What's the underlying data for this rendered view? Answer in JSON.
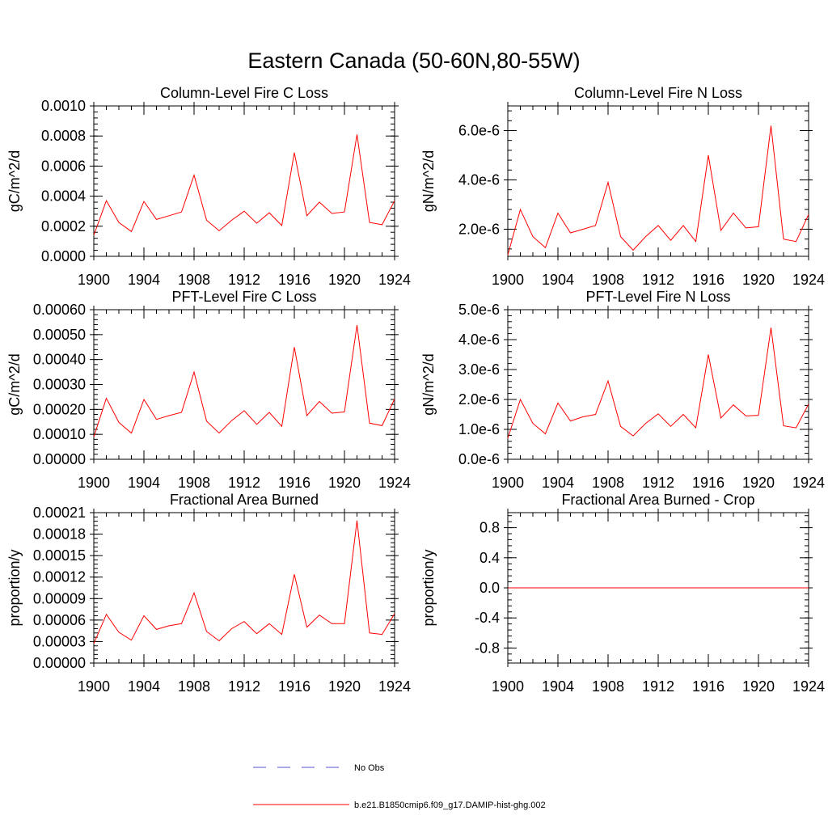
{
  "figure": {
    "title": "Eastern Canada (50-60N,80-55W)"
  },
  "legend": {
    "entries": [
      {
        "label": "No Obs",
        "color": "#5555cc",
        "style": "dashed"
      },
      {
        "label": "b.e21.B1850cmip6.f09_g17.DAMIP-hist-ghg.002",
        "color": "#ff0000",
        "style": "solid"
      }
    ]
  },
  "chart_data": [
    {
      "type": "line",
      "title": "Column-Level Fire C Loss",
      "ylabel": "gC/m^2/d",
      "xlabel": "",
      "xlim": [
        1900,
        1924
      ],
      "ylim": [
        0,
        0.001
      ],
      "xticks": [
        1900,
        1904,
        1908,
        1912,
        1916,
        1920,
        1924
      ],
      "xtick_labels": [
        "1900",
        "1904",
        "1908",
        "1912",
        "1916",
        "1920",
        "1924"
      ],
      "yticks": [
        0,
        0.0002,
        0.0004,
        0.0006,
        0.0008,
        0.001
      ],
      "ytick_labels": [
        "0.0000",
        "0.0002",
        "0.0004",
        "0.0006",
        "0.0008",
        "0.0010"
      ],
      "series": [
        {
          "name": "b.e21.B1850cmip6.f09_g17.DAMIP-hist-ghg.002",
          "color": "#ff0000",
          "x": [
            1900,
            1901,
            1902,
            1903,
            1904,
            1905,
            1906,
            1907,
            1908,
            1909,
            1910,
            1911,
            1912,
            1913,
            1914,
            1915,
            1916,
            1917,
            1918,
            1919,
            1920,
            1921,
            1922,
            1923,
            1924
          ],
          "values": [
            0.00014,
            0.00037,
            0.000225,
            0.000165,
            0.000365,
            0.000245,
            0.00027,
            0.000295,
            0.00054,
            0.00024,
            0.00017,
            0.00024,
            0.0003,
            0.00022,
            0.00029,
            0.000205,
            0.00069,
            0.00027,
            0.00036,
            0.000285,
            0.000295,
            0.00081,
            0.000225,
            0.00021,
            0.00037
          ]
        }
      ]
    },
    {
      "type": "line",
      "title": "Column-Level Fire N Loss",
      "ylabel": "gN/m^2/d",
      "xlabel": "",
      "xlim": [
        1900,
        1924
      ],
      "ylim": [
        9e-07,
        7e-06
      ],
      "xticks": [
        1900,
        1904,
        1908,
        1912,
        1916,
        1920,
        1924
      ],
      "xtick_labels": [
        "1900",
        "1904",
        "1908",
        "1912",
        "1916",
        "1920",
        "1924"
      ],
      "yticks": [
        2e-06,
        4e-06,
        6e-06
      ],
      "ytick_labels": [
        "2.0e-6",
        "4.0e-6",
        "6.0e-6"
      ],
      "series": [
        {
          "name": "b.e21.B1850cmip6.f09_g17.DAMIP-hist-ghg.002",
          "color": "#ff0000",
          "x": [
            1900,
            1901,
            1902,
            1903,
            1904,
            1905,
            1906,
            1907,
            1908,
            1909,
            1910,
            1911,
            1912,
            1913,
            1914,
            1915,
            1916,
            1917,
            1918,
            1919,
            1920,
            1921,
            1922,
            1923,
            1924
          ],
          "values": [
            9.5e-07,
            2.8e-06,
            1.7e-06,
            1.25e-06,
            2.65e-06,
            1.85e-06,
            2e-06,
            2.15e-06,
            3.9e-06,
            1.7e-06,
            1.15e-06,
            1.7e-06,
            2.15e-06,
            1.55e-06,
            2.15e-06,
            1.5e-06,
            5e-06,
            1.95e-06,
            2.65e-06,
            2.05e-06,
            2.1e-06,
            6.2e-06,
            1.6e-06,
            1.5e-06,
            2.6e-06
          ]
        }
      ]
    },
    {
      "type": "line",
      "title": "PFT-Level Fire C Loss",
      "ylabel": "gC/m^2/d",
      "xlabel": "",
      "xlim": [
        1900,
        1924
      ],
      "ylim": [
        0,
        0.0006
      ],
      "xticks": [
        1900,
        1904,
        1908,
        1912,
        1916,
        1920,
        1924
      ],
      "xtick_labels": [
        "1900",
        "1904",
        "1908",
        "1912",
        "1916",
        "1920",
        "1924"
      ],
      "yticks": [
        0,
        0.0001,
        0.0002,
        0.0003,
        0.0004,
        0.0005,
        0.0006
      ],
      "ytick_labels": [
        "0.00000",
        "0.00010",
        "0.00020",
        "0.00030",
        "0.00040",
        "0.00050",
        "0.00060"
      ],
      "series": [
        {
          "name": "b.e21.B1850cmip6.f09_g17.DAMIP-hist-ghg.002",
          "color": "#ff0000",
          "x": [
            1900,
            1901,
            1902,
            1903,
            1904,
            1905,
            1906,
            1907,
            1908,
            1909,
            1910,
            1911,
            1912,
            1913,
            1914,
            1915,
            1916,
            1917,
            1918,
            1919,
            1920,
            1921,
            1922,
            1923,
            1924
          ],
          "values": [
            9e-05,
            0.000245,
            0.000148,
            0.000105,
            0.00024,
            0.00016,
            0.000175,
            0.000188,
            0.00035,
            0.000153,
            0.000105,
            0.000155,
            0.000195,
            0.00014,
            0.000188,
            0.000132,
            0.00045,
            0.000175,
            0.000232,
            0.000185,
            0.00019,
            0.000538,
            0.000145,
            0.000135,
            0.000242
          ]
        }
      ]
    },
    {
      "type": "line",
      "title": "PFT-Level Fire N Loss",
      "ylabel": "gN/m^2/d",
      "xlabel": "",
      "xlim": [
        1900,
        1924
      ],
      "ylim": [
        0,
        5e-06
      ],
      "xticks": [
        1900,
        1904,
        1908,
        1912,
        1916,
        1920,
        1924
      ],
      "xtick_labels": [
        "1900",
        "1904",
        "1908",
        "1912",
        "1916",
        "1920",
        "1924"
      ],
      "yticks": [
        0,
        1e-06,
        2e-06,
        3e-06,
        4e-06,
        5e-06
      ],
      "ytick_labels": [
        "0.0e-6",
        "1.0e-6",
        "2.0e-6",
        "3.0e-6",
        "4.0e-6",
        "5.0e-6"
      ],
      "series": [
        {
          "name": "b.e21.B1850cmip6.f09_g17.DAMIP-hist-ghg.002",
          "color": "#ff0000",
          "x": [
            1900,
            1901,
            1902,
            1903,
            1904,
            1905,
            1906,
            1907,
            1908,
            1909,
            1910,
            1911,
            1912,
            1913,
            1914,
            1915,
            1916,
            1917,
            1918,
            1919,
            1920,
            1921,
            1922,
            1923,
            1924
          ],
          "values": [
            7e-07,
            2e-06,
            1.2e-06,
            8.5e-07,
            1.88e-06,
            1.28e-06,
            1.42e-06,
            1.5e-06,
            2.62e-06,
            1.1e-06,
            7.8e-07,
            1.2e-06,
            1.52e-06,
            1.1e-06,
            1.5e-06,
            1.05e-06,
            3.5e-06,
            1.38e-06,
            1.82e-06,
            1.45e-06,
            1.47e-06,
            4.4e-06,
            1.12e-06,
            1.05e-06,
            1.85e-06
          ]
        }
      ]
    },
    {
      "type": "line",
      "title": "Fractional Area Burned",
      "ylabel": "proportion/y",
      "xlabel": "",
      "xlim": [
        1900,
        1924
      ],
      "ylim": [
        0,
        0.00021
      ],
      "xticks": [
        1900,
        1904,
        1908,
        1912,
        1916,
        1920,
        1924
      ],
      "xtick_labels": [
        "1900",
        "1904",
        "1908",
        "1912",
        "1916",
        "1920",
        "1924"
      ],
      "yticks": [
        0,
        3e-05,
        6e-05,
        9e-05,
        0.00012,
        0.00015,
        0.00018,
        0.00021
      ],
      "ytick_labels": [
        "0.00000",
        "0.00003",
        "0.00006",
        "0.00009",
        "0.00012",
        "0.00015",
        "0.00018",
        "0.00021"
      ],
      "series": [
        {
          "name": "b.e21.B1850cmip6.f09_g17.DAMIP-hist-ghg.002",
          "color": "#ff0000",
          "x": [
            1900,
            1901,
            1902,
            1903,
            1904,
            1905,
            1906,
            1907,
            1908,
            1909,
            1910,
            1911,
            1912,
            1913,
            1914,
            1915,
            1916,
            1917,
            1918,
            1919,
            1920,
            1921,
            1922,
            1923,
            1924
          ],
          "values": [
            2.7e-05,
            6.8e-05,
            4.3e-05,
            3.2e-05,
            6.6e-05,
            4.7e-05,
            5.2e-05,
            5.5e-05,
            9.8e-05,
            4.4e-05,
            3.1e-05,
            4.8e-05,
            5.8e-05,
            4.1e-05,
            5.5e-05,
            4e-05,
            0.000124,
            5e-05,
            6.7e-05,
            5.5e-05,
            5.5e-05,
            0.000199,
            4.2e-05,
            4e-05,
            6.9e-05
          ]
        }
      ]
    },
    {
      "type": "line",
      "title": "Fractional Area Burned - Crop",
      "ylabel": "proportion/y",
      "xlabel": "",
      "xlim": [
        1900,
        1924
      ],
      "ylim": [
        -1.0,
        1.0
      ],
      "xticks": [
        1900,
        1904,
        1908,
        1912,
        1916,
        1920,
        1924
      ],
      "xtick_labels": [
        "1900",
        "1904",
        "1908",
        "1912",
        "1916",
        "1920",
        "1924"
      ],
      "yticks": [
        -0.8,
        -0.4,
        0,
        0.4,
        0.8
      ],
      "ytick_labels": [
        "-0.8",
        "-0.4",
        "0.0",
        "0.4",
        "0.8"
      ],
      "series": [
        {
          "name": "b.e21.B1850cmip6.f09_g17.DAMIP-hist-ghg.002",
          "color": "#ff0000",
          "x": [
            1900,
            1901,
            1902,
            1903,
            1904,
            1905,
            1906,
            1907,
            1908,
            1909,
            1910,
            1911,
            1912,
            1913,
            1914,
            1915,
            1916,
            1917,
            1918,
            1919,
            1920,
            1921,
            1922,
            1923,
            1924
          ],
          "values": [
            0,
            0,
            0,
            0,
            0,
            0,
            0,
            0,
            0,
            0,
            0,
            0,
            0,
            0,
            0,
            0,
            0,
            0,
            0,
            0,
            0,
            0,
            0,
            0,
            0
          ]
        }
      ]
    }
  ]
}
